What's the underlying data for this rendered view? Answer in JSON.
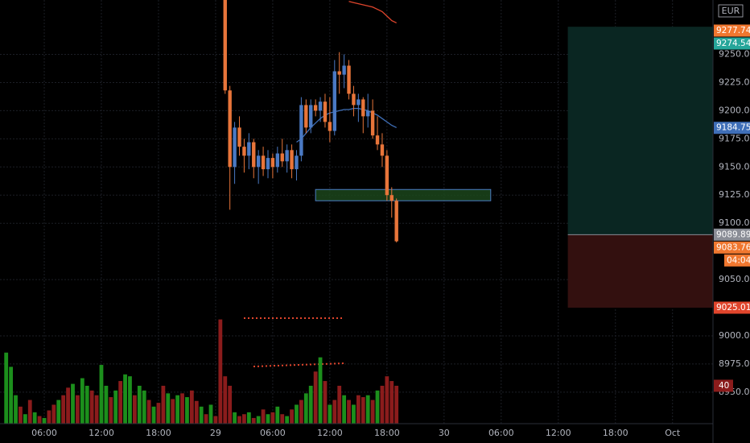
{
  "chart_data": {
    "type": "candlestick",
    "currency": "EUR",
    "xlim": [
      1.35,
      76.25
    ],
    "ylim": [
      8922,
      9298.3
    ],
    "xticks": [
      {
        "value": 6,
        "label": "06:00"
      },
      {
        "value": 12,
        "label": "12:00"
      },
      {
        "value": 18,
        "label": "18:00"
      },
      {
        "value": 24,
        "label": "29"
      },
      {
        "value": 30,
        "label": "06:00"
      },
      {
        "value": 36,
        "label": "12:00"
      },
      {
        "value": 42,
        "label": "18:00"
      },
      {
        "value": 48,
        "label": "30"
      },
      {
        "value": 54,
        "label": "06:00"
      },
      {
        "value": 60,
        "label": "12:00"
      },
      {
        "value": 66,
        "label": "18:00"
      },
      {
        "value": 72,
        "label": "Oct"
      }
    ],
    "yticks": [
      {
        "value": 8950,
        "label": "8950.00"
      },
      {
        "value": 8975,
        "label": "8975.00"
      },
      {
        "value": 9000,
        "label": "9000.00"
      },
      {
        "value": 9050,
        "label": "9050.00"
      },
      {
        "value": 9100,
        "label": "9100.00"
      },
      {
        "value": 9125,
        "label": "9125.00"
      },
      {
        "value": 9150,
        "label": "9150.00"
      },
      {
        "value": 9175,
        "label": "9175.00"
      },
      {
        "value": 9200,
        "label": "9200.00"
      },
      {
        "value": 9225,
        "label": "9225.00"
      },
      {
        "value": 9250,
        "label": "9250.00"
      }
    ],
    "grid": true,
    "up_color": "#4a79c3",
    "down_color": "#e8753a",
    "x": [
      25,
      25.5,
      26,
      26.5,
      27,
      27.5,
      28,
      28.5,
      29,
      29.5,
      30,
      30.5,
      31,
      31.5,
      32,
      32.5,
      33,
      33.5,
      34,
      34.5,
      35,
      35.5,
      36,
      36.5,
      37,
      37.5,
      38,
      38.5,
      39,
      39.5,
      40,
      40.5,
      41,
      41.5,
      42,
      42.5,
      43
    ],
    "open": [
      9310,
      9218,
      9150,
      9185,
      9168,
      9160,
      9172,
      9150,
      9160,
      9148,
      9158,
      9150,
      9162,
      9155,
      9165,
      9148,
      9160,
      9205,
      9185,
      9205,
      9200,
      9208,
      9190,
      9182,
      9235,
      9232,
      9240,
      9215,
      9205,
      9210,
      9195,
      9200,
      9178,
      9170,
      9160,
      9125,
      9120
    ],
    "high": [
      9320,
      9222,
      9190,
      9195,
      9175,
      9180,
      9175,
      9165,
      9168,
      9165,
      9162,
      9168,
      9175,
      9170,
      9170,
      9165,
      9212,
      9210,
      9210,
      9210,
      9212,
      9215,
      9212,
      9245,
      9252,
      9250,
      9245,
      9222,
      9215,
      9212,
      9215,
      9210,
      9195,
      9180,
      9165,
      9132,
      9122
    ],
    "low": [
      9215,
      9112,
      9135,
      9160,
      9145,
      9148,
      9140,
      9135,
      9142,
      9140,
      9140,
      9145,
      9150,
      9145,
      9140,
      9138,
      9155,
      9180,
      9180,
      9195,
      9190,
      9185,
      9172,
      9178,
      9215,
      9220,
      9210,
      9195,
      9190,
      9180,
      9185,
      9175,
      9165,
      9150,
      9120,
      9105,
      9083
    ],
    "close": [
      9218,
      9150,
      9185,
      9168,
      9160,
      9172,
      9150,
      9160,
      9148,
      9158,
      9150,
      9162,
      9155,
      9165,
      9148,
      9160,
      9205,
      9185,
      9205,
      9200,
      9208,
      9190,
      9182,
      9235,
      9232,
      9240,
      9215,
      9205,
      9210,
      9195,
      9200,
      9178,
      9170,
      9160,
      9125,
      9120,
      9084
    ],
    "lines": [
      {
        "color": "#3f6fb8",
        "values": [
          null,
          null,
          null,
          null,
          null,
          null,
          null,
          null,
          null,
          null,
          null,
          null,
          null,
          null,
          null,
          9172,
          9175,
          9180,
          9185,
          9189,
          9193,
          9196,
          9198,
          9199,
          9200,
          9201,
          9201,
          9202,
          9202,
          9201,
          9200,
          9198,
          9196,
          9193,
          9190,
          9187,
          9185
        ]
      },
      {
        "color": "#e0452c",
        "values": [
          null,
          null,
          null,
          null,
          null,
          null,
          null,
          null,
          null,
          null,
          null,
          null,
          null,
          null,
          null,
          null,
          null,
          null,
          null,
          null,
          null,
          null,
          null,
          null,
          null,
          null,
          9297,
          9296,
          9295,
          9294,
          9293,
          9292,
          9290,
          9288,
          9284,
          9280,
          9278
        ]
      }
    ],
    "volume": {
      "vlim": [
        0,
        119
      ],
      "up_color": "#1c8f1c",
      "down_color": "#8b1c1c",
      "x": [
        2,
        2.5,
        3,
        3.5,
        4,
        4.5,
        5,
        5.5,
        6,
        6.5,
        7,
        7.5,
        8,
        8.5,
        9,
        9.5,
        10,
        10.5,
        11,
        11.5,
        12,
        12.5,
        13,
        13.5,
        14,
        14.5,
        15,
        15.5,
        16,
        16.5,
        17,
        17.5,
        18,
        18.5,
        19,
        19.5,
        20,
        20.5,
        21,
        21.5,
        22,
        22.5,
        23,
        23.5,
        24,
        24.5,
        25,
        25.5,
        26,
        26.5,
        27,
        27.5,
        28,
        28.5,
        29,
        29.5,
        30,
        30.5,
        31,
        31.5,
        32,
        32.5,
        33,
        33.5,
        34,
        34.5,
        35,
        35.5,
        36,
        36.5,
        37,
        37.5,
        38,
        38.5,
        39,
        39.5,
        40,
        40.5,
        41,
        41.5,
        42,
        42.5,
        43
      ],
      "values": [
        75,
        60,
        30,
        18,
        10,
        25,
        12,
        8,
        6,
        14,
        20,
        25,
        30,
        38,
        42,
        30,
        48,
        40,
        35,
        30,
        62,
        40,
        28,
        35,
        45,
        52,
        50,
        30,
        40,
        35,
        25,
        18,
        22,
        40,
        32,
        26,
        30,
        32,
        28,
        35,
        24,
        18,
        10,
        20,
        8,
        110,
        50,
        40,
        12,
        8,
        10,
        12,
        6,
        8,
        15,
        10,
        12,
        18,
        10,
        8,
        15,
        20,
        25,
        32,
        40,
        55,
        70,
        45,
        20,
        25,
        40,
        30,
        25,
        20,
        30,
        28,
        30,
        25,
        35,
        40,
        50,
        45,
        40
      ],
      "up": [
        1,
        1,
        1,
        0,
        1,
        0,
        1,
        0,
        1,
        0,
        0,
        1,
        0,
        0,
        1,
        0,
        1,
        1,
        0,
        0,
        1,
        1,
        0,
        1,
        0,
        1,
        1,
        0,
        1,
        1,
        0,
        1,
        0,
        0,
        1,
        0,
        1,
        0,
        1,
        0,
        0,
        1,
        0,
        1,
        0,
        0,
        0,
        0,
        1,
        0,
        0,
        1,
        0,
        1,
        0,
        1,
        0,
        1,
        0,
        1,
        0,
        1,
        0,
        1,
        1,
        0,
        1,
        0,
        1,
        0,
        0,
        1,
        0,
        1,
        0,
        0,
        1,
        0,
        1,
        0,
        0,
        0,
        0,
        1,
        0,
        1,
        0
      ]
    },
    "zone": {
      "x": [
        34.5,
        52.9
      ],
      "y": [
        9120,
        9130
      ],
      "fill": "#1d4a1d",
      "stroke": "#4a7bc4"
    },
    "position_start": 61,
    "price_tags": [
      {
        "value": 9277.74,
        "label": "9277.74",
        "color": "#f0772f"
      },
      {
        "value": 9274.54,
        "label": "9274.54",
        "color": "#26a69a"
      },
      {
        "value": 9184.75,
        "label": "9184.75",
        "color": "#3f6fb8"
      },
      {
        "value": 9089.89,
        "label": "9089.89",
        "color": "#8a8d96"
      },
      {
        "value": 9083.76,
        "label": "9083.76",
        "color": "#f0772f"
      },
      {
        "value": 9025.01,
        "label": "9025.01",
        "color": "#e0452c"
      }
    ],
    "countdown": "04:04"
  }
}
